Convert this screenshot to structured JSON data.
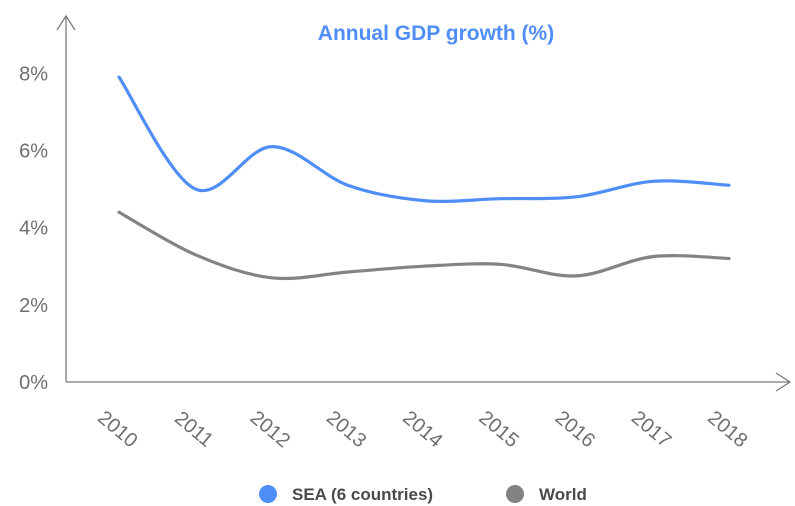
{
  "chart_data": {
    "type": "line",
    "title": "Annual GDP growth (%)",
    "xlabel": "",
    "ylabel": "",
    "x": [
      "2010",
      "2011",
      "2012",
      "2013",
      "2014",
      "2015",
      "2016",
      "2017",
      "2018"
    ],
    "y_ticks": [
      "0%",
      "2%",
      "4%",
      "6%",
      "8%"
    ],
    "ylim": [
      0,
      8.5
    ],
    "grid": false,
    "legend_position": "bottom",
    "series": [
      {
        "name": "SEA (6 countries)",
        "color": "#4f8ef7",
        "values": [
          7.9,
          5.0,
          6.1,
          5.1,
          4.7,
          4.75,
          4.8,
          5.2,
          5.1
        ]
      },
      {
        "name": "World",
        "color": "#838383",
        "values": [
          4.4,
          3.3,
          2.7,
          2.85,
          3.0,
          3.05,
          2.75,
          3.25,
          3.2
        ]
      }
    ],
    "colors": {
      "title": "#4f8ef7",
      "axis": "#6f6f6f",
      "legend_text": "#4a4a4a"
    }
  }
}
